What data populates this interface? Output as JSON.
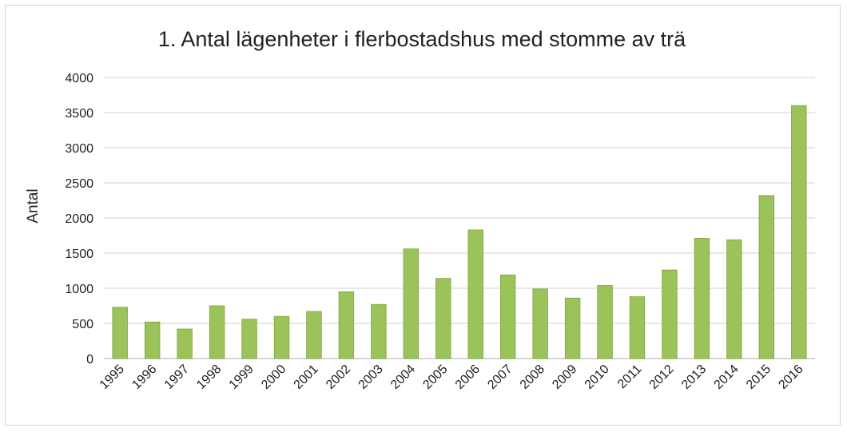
{
  "chart_data": {
    "type": "bar",
    "title": "1. Antal lägenheter i flerbostadshus med stomme av trä",
    "xlabel": "",
    "ylabel": "Antal",
    "categories": [
      "1995",
      "1996",
      "1997",
      "1998",
      "1999",
      "2000",
      "2001",
      "2002",
      "2003",
      "2004",
      "2005",
      "2006",
      "2007",
      "2008",
      "2009",
      "2010",
      "2011",
      "2012",
      "2013",
      "2014",
      "2015",
      "2016"
    ],
    "values": [
      730,
      520,
      420,
      750,
      560,
      600,
      670,
      950,
      770,
      1560,
      1140,
      1830,
      1190,
      990,
      860,
      1040,
      880,
      1260,
      1710,
      1690,
      2320,
      3600
    ],
    "ylim": [
      0,
      4000
    ],
    "yticks": [
      "0",
      "500",
      "1000",
      "1500",
      "2000",
      "2500",
      "3000",
      "3500",
      "4000"
    ],
    "grid": true,
    "bar_color": "#9bc35a",
    "bar_edge_color": "#7ea43f"
  }
}
